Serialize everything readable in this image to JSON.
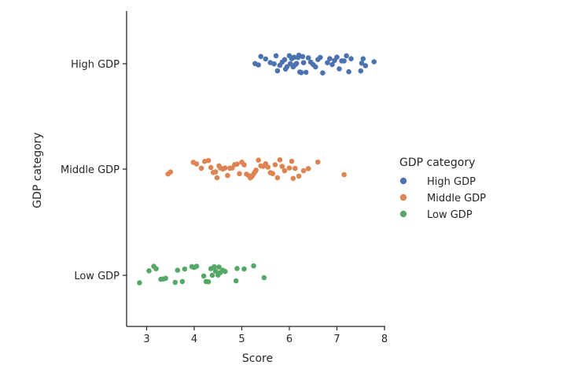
{
  "chart_data": {
    "type": "scatter",
    "subtype": "strip",
    "title": "",
    "xlabel": "Score",
    "ylabel": "GDP category",
    "xlim": [
      2.6,
      8.0
    ],
    "xticks": [
      "3",
      "4",
      "5",
      "6",
      "7",
      "8"
    ],
    "categories": [
      "High GDP",
      "Middle GDP",
      "Low GDP"
    ],
    "grid": false,
    "legend": {
      "title": "GDP category",
      "placement": "right"
    },
    "series": [
      {
        "name": "High GDP",
        "color": "#4C72B0",
        "values": [
          5.28,
          5.35,
          5.4,
          5.5,
          5.6,
          5.68,
          5.72,
          5.75,
          5.8,
          5.85,
          5.9,
          5.92,
          5.95,
          6.0,
          6.02,
          6.05,
          6.08,
          6.1,
          6.12,
          6.15,
          6.18,
          6.2,
          6.22,
          6.25,
          6.28,
          6.3,
          6.35,
          6.4,
          6.45,
          6.5,
          6.55,
          6.6,
          6.65,
          6.7,
          6.8,
          6.85,
          6.9,
          6.95,
          7.0,
          7.05,
          7.1,
          7.15,
          7.2,
          7.25,
          7.3,
          7.5,
          7.52,
          7.55,
          7.6,
          7.78
        ]
      },
      {
        "name": "Middle GDP",
        "color": "#DD8452",
        "values": [
          3.45,
          3.5,
          3.98,
          4.05,
          4.15,
          4.22,
          4.3,
          4.35,
          4.4,
          4.45,
          4.48,
          4.52,
          4.55,
          4.6,
          4.65,
          4.7,
          4.75,
          4.8,
          4.85,
          4.9,
          4.95,
          5.0,
          5.05,
          5.1,
          5.15,
          5.18,
          5.2,
          5.22,
          5.25,
          5.28,
          5.3,
          5.35,
          5.4,
          5.45,
          5.5,
          5.55,
          5.6,
          5.65,
          5.7,
          5.75,
          5.8,
          5.85,
          5.9,
          6.0,
          6.05,
          6.08,
          6.12,
          6.2,
          6.3,
          6.4,
          6.6,
          7.15
        ]
      },
      {
        "name": "Low GDP",
        "color": "#55A868",
        "values": [
          2.85,
          3.05,
          3.15,
          3.2,
          3.3,
          3.35,
          3.4,
          3.6,
          3.65,
          3.75,
          3.8,
          3.95,
          4.0,
          4.05,
          4.2,
          4.25,
          4.3,
          4.35,
          4.38,
          4.42,
          4.45,
          4.5,
          4.52,
          4.55,
          4.6,
          4.65,
          4.88,
          4.9,
          5.05,
          5.25,
          5.47
        ]
      }
    ]
  }
}
